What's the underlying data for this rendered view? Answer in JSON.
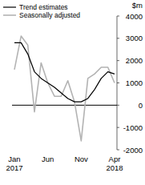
{
  "chart_data": {
    "type": "line",
    "y_label": "$m",
    "categories": [
      "Jan 2017",
      null,
      null,
      null,
      null,
      "Jun",
      null,
      null,
      null,
      null,
      "Nov",
      null,
      null,
      null,
      null,
      "Apr 2018"
    ],
    "series": [
      {
        "name": "Trend estimates",
        "color": "#000000",
        "values": [
          2800,
          2800,
          2300,
          1500,
          1200,
          1000,
          800,
          550,
          300,
          150,
          150,
          300,
          700,
          1200,
          1500,
          1400
        ]
      },
      {
        "name": "Seasonally adjusted",
        "color": "#b3b3b3",
        "values": [
          1600,
          3100,
          2700,
          -300,
          1900,
          1000,
          400,
          400,
          1100,
          150,
          -1600,
          1200,
          1400,
          1700,
          1700,
          1000
        ]
      }
    ],
    "ylim": [
      -2000,
      4000
    ],
    "yticks": [
      -2000,
      -1000,
      0,
      1000,
      2000,
      3000,
      4000
    ],
    "legend": "upper left"
  }
}
